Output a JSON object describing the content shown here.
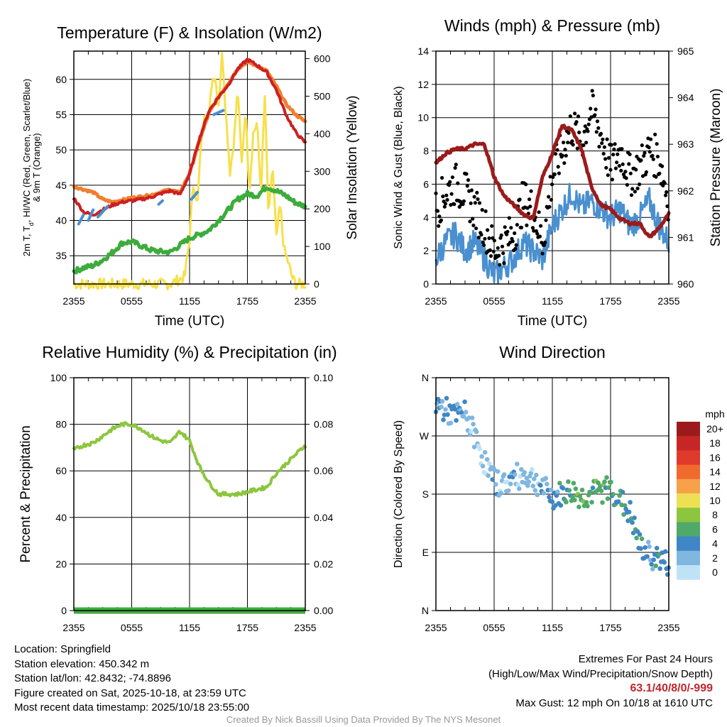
{
  "chart_data": [
    {
      "type": "line",
      "title": "Temperature (F) & Insolation (W/m2)",
      "xlabel": "Time (UTC)",
      "ylabel": "2m T, Td, HI/WC (Red, Green, Scarlet/Blue) & 9m T (Orange)",
      "ylabel_lines": [
        "2m T, T",
        "d",
        ", HI/WC (Red, Green, Scarlet/Blue)",
        "& 9m T (Orange)"
      ],
      "y2label": "Solar Insolation (Yellow)",
      "x_ticks": [
        "2355",
        "0555",
        "1155",
        "1755",
        "2355"
      ],
      "ylim": [
        31,
        64
      ],
      "y_ticks": [
        35,
        40,
        45,
        50,
        55,
        60
      ],
      "y2lim": [
        0,
        620
      ],
      "y2_ticks": [
        0,
        100,
        200,
        300,
        400,
        500,
        600
      ],
      "series": [
        {
          "name": "2m T",
          "color": "#cc2020",
          "x": [
            0,
            1,
            2,
            3,
            4,
            5,
            6,
            7,
            8,
            9,
            10,
            11,
            12,
            13,
            14,
            15,
            16,
            17,
            18,
            19,
            20,
            21,
            22,
            23,
            24
          ],
          "values": [
            43.2,
            41.2,
            40.8,
            41.5,
            42.2,
            42.6,
            42.8,
            43.0,
            43.3,
            43.8,
            44.2,
            43.7,
            46.5,
            51.5,
            55.5,
            57.5,
            59.2,
            61.5,
            62.8,
            62.0,
            61.0,
            58.5,
            55.0,
            52.5,
            51.0
          ]
        },
        {
          "name": "9m T",
          "color": "#f07f30",
          "x": [
            0,
            1,
            2,
            3,
            4,
            5,
            6,
            7,
            8,
            9,
            10,
            11,
            12,
            13,
            14,
            15,
            16,
            17,
            18,
            19,
            20,
            21,
            22,
            23,
            24
          ],
          "values": [
            44.8,
            44.4,
            44.0,
            43.0,
            42.6,
            42.9,
            43.2,
            43.4,
            43.6,
            44.0,
            44.4,
            43.9,
            46.7,
            51.2,
            55.2,
            57.5,
            59.4,
            61.5,
            62.5,
            61.9,
            61.2,
            59.0,
            56.5,
            55.0,
            54.0
          ]
        },
        {
          "name": "Td",
          "color": "#3cac3c",
          "x": [
            0,
            1,
            2,
            3,
            4,
            5,
            6,
            7,
            8,
            9,
            10,
            11,
            12,
            13,
            14,
            15,
            16,
            17,
            18,
            19,
            20,
            21,
            22,
            23,
            24
          ],
          "values": [
            32.8,
            33.3,
            33.6,
            34.4,
            35.5,
            36.8,
            37.0,
            36.4,
            35.8,
            35.6,
            35.5,
            36.5,
            37.5,
            38.0,
            38.6,
            40.0,
            41.5,
            43.0,
            43.8,
            43.5,
            44.8,
            44.2,
            43.5,
            42.5,
            42.0
          ]
        },
        {
          "name": "HI/WC",
          "color": "#4a90d0",
          "x": [
            0.5,
            1.0,
            1.5,
            2.0,
            2.5,
            3.5,
            8.8,
            9.2,
            12.2,
            12.8,
            14.5,
            15.5
          ],
          "values": [
            39.5,
            40.8,
            40.0,
            41.5,
            40.5,
            42.0,
            42.3,
            42.8,
            43.0,
            44.0,
            55.0,
            55.6
          ]
        },
        {
          "name": "Solar Insolation",
          "color": "#f7e04a",
          "axis": "y2",
          "x": [
            0,
            10,
            11.5,
            12.0,
            12.4,
            12.8,
            13.2,
            13.6,
            14.0,
            14.3,
            14.6,
            15.0,
            15.4,
            15.8,
            16.2,
            16.6,
            17.0,
            17.4,
            17.8,
            18.2,
            18.6,
            19.0,
            19.4,
            19.8,
            20.2,
            20.6,
            21.0,
            21.4,
            21.8,
            22.2,
            22.6,
            23,
            24
          ],
          "values": [
            0,
            0,
            20,
            120,
            280,
            200,
            380,
            470,
            430,
            540,
            560,
            480,
            620,
            440,
            300,
            380,
            520,
            320,
            470,
            250,
            400,
            430,
            240,
            500,
            170,
            320,
            120,
            210,
            90,
            60,
            20,
            0,
            0
          ]
        }
      ]
    },
    {
      "type": "line",
      "title": "Winds (mph) & Pressure (mb)",
      "xlabel": "Time (UTC)",
      "ylabel": "Sonic Wind & Gust (Blue, Black)",
      "y2label": "Station Pressure (Maroon)",
      "x_ticks": [
        "2355",
        "0555",
        "1155",
        "1755",
        "2355"
      ],
      "ylim": [
        0,
        14
      ],
      "y_ticks": [
        0,
        2,
        4,
        6,
        8,
        10,
        12,
        14
      ],
      "y2lim": [
        960,
        965
      ],
      "y2_ticks": [
        960,
        961,
        962,
        963,
        964,
        965
      ],
      "series": [
        {
          "name": "Sonic Wind",
          "color": "#4a90d0",
          "style": "line",
          "x": [
            0,
            1,
            2,
            3,
            4,
            5,
            6,
            7,
            8,
            9,
            10,
            11,
            12,
            13,
            14,
            15,
            16,
            17,
            18,
            19,
            20,
            21,
            22,
            23,
            24
          ],
          "values": [
            1.5,
            2.5,
            3.0,
            2.0,
            2.5,
            1.5,
            0.5,
            1.0,
            1.5,
            2.5,
            2.0,
            1.5,
            3.5,
            4.5,
            5.5,
            4.5,
            5.0,
            4.5,
            4.0,
            4.5,
            3.5,
            4.0,
            5.0,
            3.5,
            2.5
          ]
        },
        {
          "name": "Gust",
          "color": "#000000",
          "style": "points",
          "x": [
            0,
            1,
            2,
            3,
            4,
            5,
            6,
            7,
            8,
            9,
            10,
            11,
            12,
            13,
            14,
            15,
            16,
            17,
            18,
            19,
            20,
            21,
            22,
            23,
            24
          ],
          "values": [
            4.5,
            5.5,
            6.0,
            5.5,
            4.5,
            3.5,
            2.0,
            2.5,
            3.0,
            5.0,
            4.5,
            2.5,
            6.5,
            8.0,
            9.5,
            8.5,
            10.5,
            9.0,
            7.0,
            8.0,
            6.5,
            7.0,
            8.0,
            7.5,
            5.0
          ]
        },
        {
          "name": "Station Pressure",
          "color": "#9b1b1b",
          "axis": "y2",
          "style": "line",
          "x": [
            0,
            1,
            2,
            3,
            4,
            5,
            6,
            7,
            8,
            9,
            10,
            11,
            12,
            13,
            14,
            15,
            16,
            17,
            18,
            19,
            20,
            21,
            22,
            23,
            24
          ],
          "values": [
            962.6,
            962.8,
            962.9,
            962.9,
            963.0,
            963.0,
            962.3,
            961.9,
            961.7,
            961.5,
            961.4,
            962.3,
            962.8,
            963.4,
            963.3,
            962.9,
            962.1,
            961.7,
            961.6,
            961.4,
            961.3,
            961.3,
            961.0,
            961.2,
            961.5
          ]
        }
      ]
    },
    {
      "type": "line",
      "title": "Relative Humidity (%) & Precipitation (in)",
      "xlabel": "",
      "ylabel": "Percent & Precipitation",
      "x_ticks": [
        "2355",
        "0555",
        "1155",
        "1755",
        "2355"
      ],
      "ylim": [
        0,
        100
      ],
      "y_ticks": [
        0,
        20,
        40,
        60,
        80,
        100
      ],
      "y2lim": [
        0,
        0.1
      ],
      "y2_ticks": [
        "0.00",
        "0.02",
        "0.04",
        "0.06",
        "0.08",
        "0.10"
      ],
      "series": [
        {
          "name": "Relative Humidity",
          "color": "#8cc63f",
          "x": [
            0,
            1,
            2,
            3,
            4,
            5,
            6,
            7,
            8,
            9,
            10,
            11,
            12,
            13,
            14,
            15,
            16,
            17,
            18,
            19,
            20,
            21,
            22,
            23,
            24
          ],
          "values": [
            69,
            71,
            72,
            75,
            78,
            80,
            80,
            78,
            75,
            73,
            72,
            77,
            73,
            62,
            55,
            50,
            50,
            50,
            51,
            52,
            53,
            59,
            63,
            67,
            71
          ]
        },
        {
          "name": "Precipitation",
          "color": "#3cac3c",
          "axis": "y2",
          "x": [
            0,
            24
          ],
          "values": [
            0,
            0
          ]
        }
      ]
    },
    {
      "type": "scatter",
      "title": "Wind Direction",
      "ylabel": "Direction (Colored By Speed)",
      "x_ticks": [
        "2355",
        "0555",
        "1155",
        "1755",
        "2355"
      ],
      "y_ticks": [
        "N",
        "E",
        "S",
        "W",
        "N"
      ],
      "ylim": [
        0,
        360
      ],
      "legend_title": "mph",
      "legend_labels": [
        "20+",
        "18",
        "16",
        "14",
        "12",
        "10",
        "8",
        "6",
        "4",
        "2",
        "0"
      ],
      "legend_colors": [
        "#9b1b1b",
        "#c72626",
        "#e03a2b",
        "#f06a2e",
        "#f7a14a",
        "#ede055",
        "#8cc63f",
        "#4fa96a",
        "#3f86c6",
        "#7fb7e0",
        "#bfe3f6"
      ],
      "series": [
        {
          "name": "Direction",
          "x": [
            0,
            1,
            2,
            3,
            4,
            5,
            6,
            7,
            8,
            9,
            10,
            11,
            12,
            13,
            14,
            15,
            16,
            17,
            18,
            19,
            20,
            21,
            22,
            23,
            24
          ],
          "values": [
            320,
            310,
            300,
            305,
            270,
            230,
            200,
            195,
            205,
            210,
            205,
            190,
            175,
            180,
            185,
            175,
            180,
            185,
            190,
            170,
            150,
            100,
            85,
            80,
            70
          ],
          "speed_mph": [
            3,
            3,
            3,
            2,
            1,
            1,
            2,
            1,
            2,
            1,
            1,
            2,
            3,
            4,
            5,
            6,
            5,
            6,
            5,
            4,
            4,
            4,
            3,
            4,
            3
          ]
        }
      ]
    }
  ],
  "info": {
    "location": "Location: Springfield",
    "elevation": "Station elevation: 450.342 m",
    "latlon": "Station lat/lon: 42.8432; -74.8896",
    "created": "Figure created on Sat, 2025-10-18, at 23:59 UTC",
    "recent": "Most recent data timestamp: 2025/10/18 23:55:00"
  },
  "extremes": {
    "title": "Extremes For Past 24 Hours",
    "subtitle": "(High/Low/Max Wind/Precipitation/Snow Depth)",
    "values": "63.1/40/8/0/-999",
    "gust": "Max Gust: 12 mph On 10/18 at 1610 UTC"
  },
  "credit": "Created By Nick Bassill Using Data Provided By The NYS Mesonet",
  "colors": {
    "grid": "#000000",
    "temp": "#cc2020",
    "dewpoint": "#3cac3c",
    "solar": "#f7e04a",
    "pressure": "#9b1b1b"
  }
}
